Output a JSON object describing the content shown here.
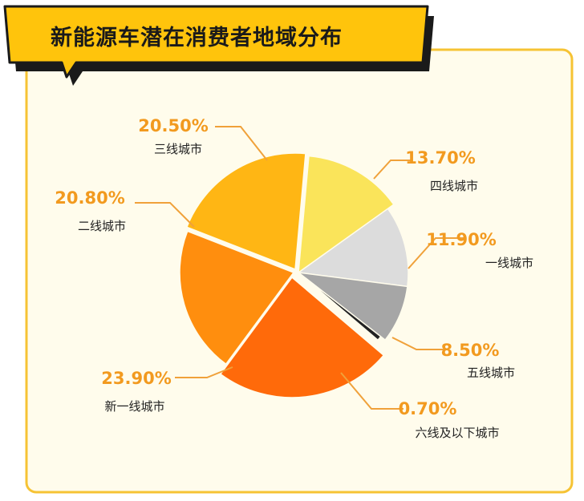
{
  "colors": {
    "accent": "#FFC40C",
    "frame_stroke": "#F6C334",
    "panel_bg": "#FFFCEC",
    "label_orange": "#F29A1F",
    "leader_orange": "#F0A13A"
  },
  "chart_data": {
    "type": "pie",
    "title": "新能源车潜在消费者地域分布",
    "slices": [
      {
        "label": "一线城市",
        "value": 11.9,
        "value_text": "11.90%",
        "color": "#DCDCDC"
      },
      {
        "label": "五线城市",
        "value": 8.5,
        "value_text": "8.50%",
        "color": "#A6A6A6"
      },
      {
        "label": "六线及以下城市",
        "value": 0.7,
        "value_text": "0.70%",
        "color": "#222222"
      },
      {
        "label": "新一线城市",
        "value": 23.9,
        "value_text": "23.90%",
        "color": "#FF6A0A"
      },
      {
        "label": "二线城市",
        "value": 20.8,
        "value_text": "20.80%",
        "color": "#FF8E0E"
      },
      {
        "label": "三线城市",
        "value": 20.5,
        "value_text": "20.50%",
        "color": "#FFB614"
      },
      {
        "label": "四线城市",
        "value": 13.7,
        "value_text": "13.70%",
        "color": "#FAE45A"
      }
    ],
    "legend": "none",
    "data_labels": "outside with leader lines"
  }
}
